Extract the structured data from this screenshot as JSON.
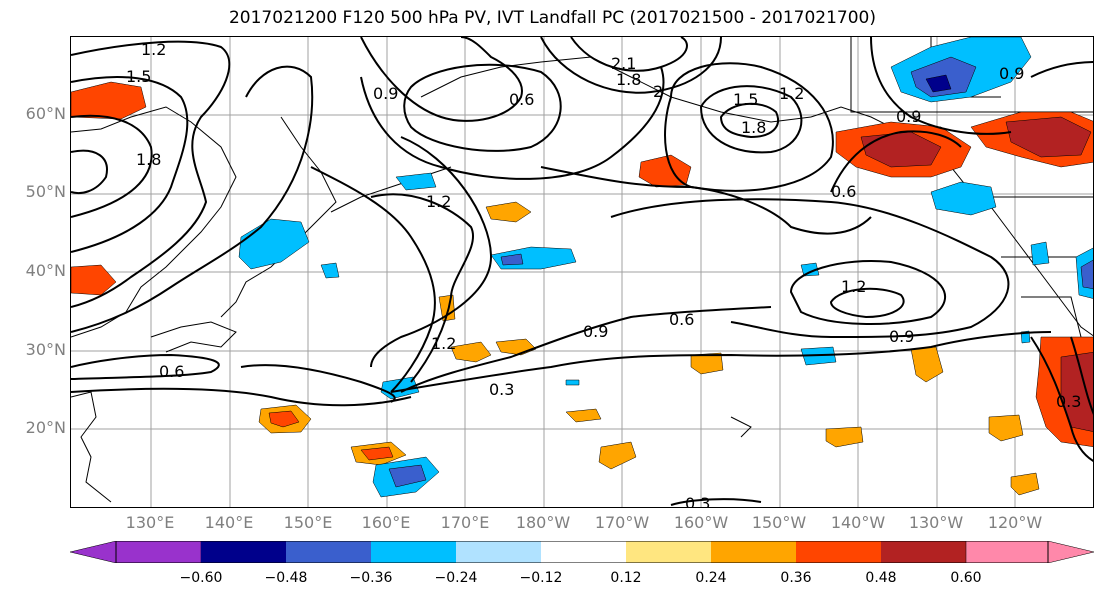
{
  "title": "2017021200 F120 500 hPa PV, IVT Landfall PC (2017021500 - 2017021700)",
  "lat_labels": [
    "60°N",
    "50°N",
    "40°N",
    "30°N",
    "20°N"
  ],
  "lon_labels": [
    "130°E",
    "140°E",
    "150°E",
    "160°E",
    "170°E",
    "180°W",
    "170°W",
    "160°W",
    "150°W",
    "140°W",
    "130°W",
    "120°W"
  ],
  "colorbar": {
    "tick_labels": [
      "−0.60",
      "−0.48",
      "−0.36",
      "−0.24",
      "−0.12",
      "0.12",
      "0.24",
      "0.36",
      "0.48",
      "0.60"
    ],
    "colors": [
      "#9932cc",
      "#00008b",
      "#3a5fcd",
      "#00bfff",
      "#b0e2ff",
      "#ffffff",
      "#ffe680",
      "#ffa500",
      "#ff4500",
      "#b22222",
      "#ff88aa"
    ]
  },
  "contour_labels": [
    {
      "text": "1.2"
    },
    {
      "text": "1.5"
    },
    {
      "text": "1.8"
    },
    {
      "text": "0.9"
    },
    {
      "text": "0.6"
    },
    {
      "text": "2.1"
    },
    {
      "text": "1.8"
    },
    {
      "text": "2"
    },
    {
      "text": "1.5"
    },
    {
      "text": "1.2"
    },
    {
      "text": "1.8"
    },
    {
      "text": "0.9"
    },
    {
      "text": "0.6"
    },
    {
      "text": "1.2"
    },
    {
      "text": "1.2"
    },
    {
      "text": "0.9"
    },
    {
      "text": "0.6"
    },
    {
      "text": "1.2"
    },
    {
      "text": "0.3"
    },
    {
      "text": "0.6"
    },
    {
      "text": "0.9"
    },
    {
      "text": "0.3"
    },
    {
      "text": "0.3"
    },
    {
      "text": "0.9"
    }
  ]
}
